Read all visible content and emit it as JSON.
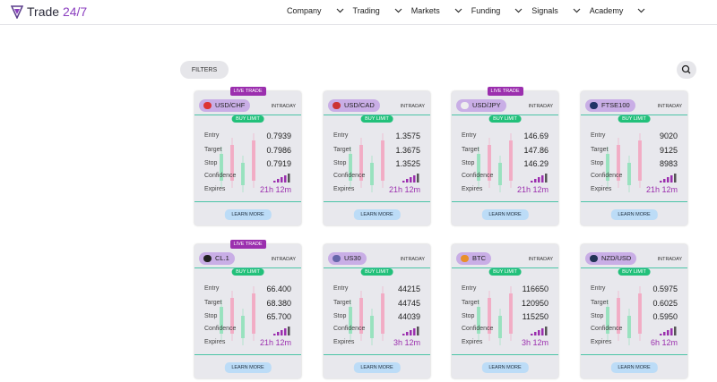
{
  "header": {
    "brand": "Trade",
    "brand_accent": "24/7",
    "nav": [
      "Company",
      "Trading",
      "Markets",
      "Funding",
      "Signals",
      "Academy"
    ]
  },
  "toolbar": {
    "filters": "FILTERS"
  },
  "cards": [
    {
      "badge": "LIVE TRADE",
      "symbol": "USD/CHF",
      "timeframe": "INTRADAY",
      "action": "BUY LIMIT",
      "rows": [
        {
          "label": "Entry",
          "value": "0.7939"
        },
        {
          "label": "Target",
          "value": "0.7986"
        },
        {
          "label": "Stop",
          "value": "0.7919"
        }
      ],
      "confidence": "Confidence",
      "expires": {
        "label": "Expires",
        "value": "21h 12m"
      },
      "button": "LEARN MORE"
    },
    {
      "symbol": "USD/CAD",
      "timeframe": "INTRADAY",
      "action": "BUY LIMIT",
      "rows": [
        {
          "label": "Entry",
          "value": "1.3575"
        },
        {
          "label": "Target",
          "value": "1.3675"
        },
        {
          "label": "Stop",
          "value": "1.3525"
        }
      ],
      "confidence": "Confidence",
      "expires": {
        "label": "Expires",
        "value": "21h 12m"
      },
      "button": "LEARN MORE"
    },
    {
      "badge": "LIVE TRADE",
      "symbol": "USD/JPY",
      "timeframe": "INTRADAY",
      "action": "BUY LIMIT",
      "rows": [
        {
          "label": "Entry",
          "value": "146.69"
        },
        {
          "label": "Target",
          "value": "147.86"
        },
        {
          "label": "Stop",
          "value": "146.29"
        }
      ],
      "confidence": "Confidence",
      "expires": {
        "label": "Expires",
        "value": "21h 12m"
      },
      "button": "LEARN MORE"
    },
    {
      "symbol": "FTSE100",
      "timeframe": "INTRADAY",
      "action": "BUY LIMIT",
      "rows": [
        {
          "label": "Entry",
          "value": "9020"
        },
        {
          "label": "Target",
          "value": "9125"
        },
        {
          "label": "Stop",
          "value": "8983"
        }
      ],
      "confidence": "Confidence",
      "expires": {
        "label": "Expires",
        "value": "21h 12m"
      },
      "button": "LEARN MORE"
    },
    {
      "badge": "LIVE TRADE",
      "symbol": "CL.1",
      "timeframe": "INTRADAY",
      "action": "BUY LIMIT",
      "rows": [
        {
          "label": "Entry",
          "value": "66.400"
        },
        {
          "label": "Target",
          "value": "68.380"
        },
        {
          "label": "Stop",
          "value": "65.700"
        }
      ],
      "confidence": "Confidence",
      "expires": {
        "label": "Expires",
        "value": "21h 12m"
      },
      "button": "LEARN MORE"
    },
    {
      "symbol": "US30",
      "timeframe": "INTRADAY",
      "action": "BUY LIMIT",
      "rows": [
        {
          "label": "Entry",
          "value": "44215"
        },
        {
          "label": "Target",
          "value": "44745"
        },
        {
          "label": "Stop",
          "value": "44039"
        }
      ],
      "confidence": "Confidence",
      "expires": {
        "label": "Expires",
        "value": "3h 12m"
      },
      "button": "LEARN MORE"
    },
    {
      "symbol": "BTC",
      "timeframe": "INTRADAY",
      "action": "BUY LIMIT",
      "rows": [
        {
          "label": "Entry",
          "value": "116650"
        },
        {
          "label": "Target",
          "value": "120950"
        },
        {
          "label": "Stop",
          "value": "115250"
        }
      ],
      "confidence": "Confidence",
      "expires": {
        "label": "Expires",
        "value": "3h 12m"
      },
      "button": "LEARN MORE"
    },
    {
      "symbol": "NZD/USD",
      "timeframe": "INTRADAY",
      "action": "BUY LIMIT",
      "rows": [
        {
          "label": "Entry",
          "value": "0.5975"
        },
        {
          "label": "Target",
          "value": "0.6025"
        },
        {
          "label": "Stop",
          "value": "0.5950"
        }
      ],
      "confidence": "Confidence",
      "expires": {
        "label": "Expires",
        "value": "6h 12m"
      },
      "button": "LEARN MORE"
    }
  ]
}
